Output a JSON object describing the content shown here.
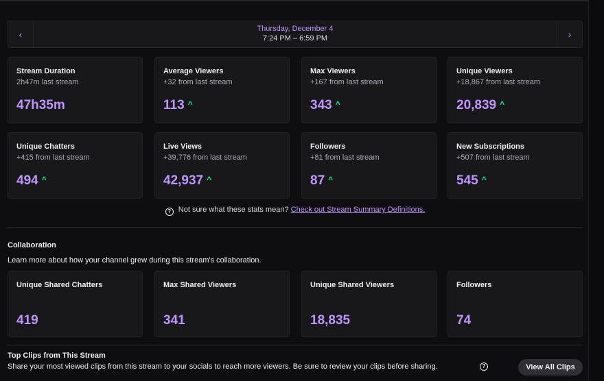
{
  "date_bar": {
    "prev_icon": "‹",
    "next_icon": "›",
    "date": "Thursday, December 4",
    "time_range": "7:24 PM – 6:59 PM"
  },
  "stats": [
    {
      "label": "Stream Duration",
      "sub": "2h47m last stream",
      "value": "47h35m",
      "trend": ""
    },
    {
      "label": "Average Viewers",
      "sub": "+32 from last stream",
      "value": "113",
      "trend": "up"
    },
    {
      "label": "Max Viewers",
      "sub": "+167 from last stream",
      "value": "343",
      "trend": "up"
    },
    {
      "label": "Unique Viewers",
      "sub": "+18,867 from last stream",
      "value": "20,839",
      "trend": "up"
    },
    {
      "label": "Unique Chatters",
      "sub": "+415 from last stream",
      "value": "494",
      "trend": "up"
    },
    {
      "label": "Live Views",
      "sub": "+39,776 from last stream",
      "value": "42,937",
      "trend": "up"
    },
    {
      "label": "Followers",
      "sub": "+81 from last stream",
      "value": "87",
      "trend": "up"
    },
    {
      "label": "New Subscriptions",
      "sub": "+507 from last stream",
      "value": "545",
      "trend": "up"
    }
  ],
  "trend_icon": "^",
  "help": {
    "icon": "?",
    "text": "Not sure what these stats mean?",
    "link": "Check out Stream Summary Definitions."
  },
  "collaboration": {
    "title": "Collaboration",
    "description": "Learn more about how your channel grew during this stream's collaboration.",
    "stats": [
      {
        "label": "Unique Shared Chatters",
        "value": "419"
      },
      {
        "label": "Max Shared Viewers",
        "value": "341"
      },
      {
        "label": "Unique Shared Viewers",
        "value": "18,835"
      },
      {
        "label": "Followers",
        "value": "74"
      }
    ]
  },
  "clips": {
    "title": "Top Clips from This Stream",
    "description": "Share your most viewed clips from this stream to your socials to reach more viewers. Be sure to review your clips before sharing.",
    "help_icon": "?",
    "view_all_label": "View All Clips"
  },
  "colors": {
    "accent": "#bf94ff",
    "trend_up": "#00f593",
    "card_bg": "#18181b",
    "page_bg": "#0e0e10"
  }
}
